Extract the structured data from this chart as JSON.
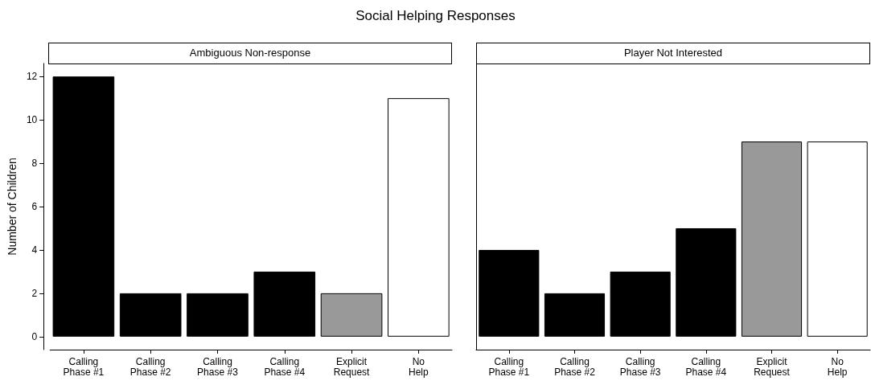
{
  "chart_data": [
    {
      "type": "bar",
      "title": "Social Helping Responses",
      "subtitle": "Ambiguous Non-response",
      "ylabel": "Number of Children",
      "categories": [
        "Calling\nPhase #1",
        "Calling\nPhase #2",
        "Calling\nPhase #3",
        "Calling\nPhase #4",
        "Explicit\nRequest",
        "No\nHelp"
      ],
      "values": [
        12,
        2,
        2,
        3,
        2,
        11
      ],
      "colors": [
        "#000000",
        "#000000",
        "#000000",
        "#000000",
        "#999999",
        "#ffffff"
      ],
      "ylim": [
        -0.6,
        12.6
      ],
      "yticks": [
        0,
        2,
        4,
        6,
        8,
        10,
        12
      ],
      "grid": false
    },
    {
      "type": "bar",
      "subtitle": "Player Not Interested",
      "categories": [
        "Calling\nPhase #1",
        "Calling\nPhase #2",
        "Calling\nPhase #3",
        "Calling\nPhase #4",
        "Explicit\nRequest",
        "No\nHelp"
      ],
      "values": [
        4,
        2,
        3,
        5,
        9,
        9
      ],
      "colors": [
        "#000000",
        "#000000",
        "#000000",
        "#000000",
        "#999999",
        "#ffffff"
      ],
      "ylim": [
        -0.6,
        12.6
      ],
      "yticks": [
        0,
        2,
        4,
        6,
        8,
        10,
        12
      ],
      "grid": false,
      "tick_labels": "x"
    }
  ]
}
